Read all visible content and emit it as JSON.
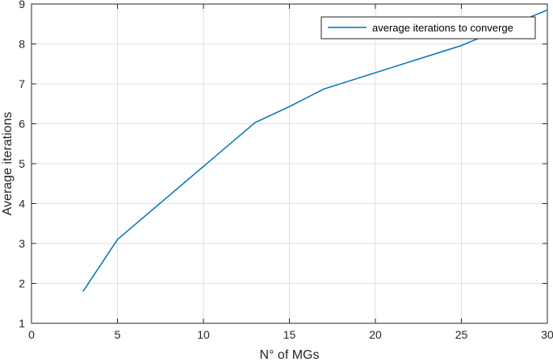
{
  "chart_data": {
    "type": "line",
    "title": "",
    "xlabel": "N° of MGs",
    "ylabel": "Average iterations",
    "xlim": [
      0,
      30
    ],
    "ylim": [
      1,
      9
    ],
    "xticks": [
      0,
      5,
      10,
      15,
      20,
      25,
      30
    ],
    "yticks": [
      1,
      2,
      3,
      4,
      5,
      6,
      7,
      8,
      9
    ],
    "grid": true,
    "legend_position": "top-right",
    "series": [
      {
        "name": "average iterations to converge",
        "color": "#0072BD",
        "x": [
          3,
          5,
          13,
          15,
          17,
          25,
          30
        ],
        "y": [
          1.8,
          3.1,
          6.03,
          6.43,
          6.87,
          7.96,
          8.85
        ]
      }
    ]
  }
}
